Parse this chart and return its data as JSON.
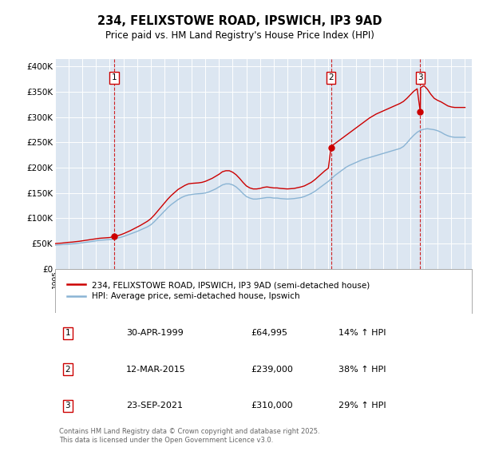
{
  "title_line1": "234, FELIXSTOWE ROAD, IPSWICH, IP3 9AD",
  "title_line2": "Price paid vs. HM Land Registry's House Price Index (HPI)",
  "ylabel_ticks": [
    "£0",
    "£50K",
    "£100K",
    "£150K",
    "£200K",
    "£250K",
    "£300K",
    "£350K",
    "£400K"
  ],
  "ytick_values": [
    0,
    50000,
    100000,
    150000,
    200000,
    250000,
    300000,
    350000,
    400000
  ],
  "ylim": [
    0,
    415000
  ],
  "xlim_start": 1995.0,
  "xlim_end": 2025.5,
  "plot_bg_color": "#dce6f1",
  "grid_color": "#ffffff",
  "red_color": "#cc0000",
  "blue_color": "#8ab4d4",
  "sale_dates_num": [
    1999.33,
    2015.19,
    2021.73
  ],
  "sale_prices": [
    64995,
    239000,
    310000
  ],
  "sale_labels": [
    "1",
    "2",
    "3"
  ],
  "legend_line1": "234, FELIXSTOWE ROAD, IPSWICH, IP3 9AD (semi-detached house)",
  "legend_line2": "HPI: Average price, semi-detached house, Ipswich",
  "table_data": [
    [
      "1",
      "30-APR-1999",
      "£64,995",
      "14% ↑ HPI"
    ],
    [
      "2",
      "12-MAR-2015",
      "£239,000",
      "38% ↑ HPI"
    ],
    [
      "3",
      "23-SEP-2021",
      "£310,000",
      "29% ↑ HPI"
    ]
  ],
  "footer_text": "Contains HM Land Registry data © Crown copyright and database right 2025.\nThis data is licensed under the Open Government Licence v3.0.",
  "hpi_years": [
    1995.0,
    1995.25,
    1995.5,
    1995.75,
    1996.0,
    1996.25,
    1996.5,
    1996.75,
    1997.0,
    1997.25,
    1997.5,
    1997.75,
    1998.0,
    1998.25,
    1998.5,
    1998.75,
    1999.0,
    1999.25,
    1999.5,
    1999.75,
    2000.0,
    2000.25,
    2000.5,
    2000.75,
    2001.0,
    2001.25,
    2001.5,
    2001.75,
    2002.0,
    2002.25,
    2002.5,
    2002.75,
    2003.0,
    2003.25,
    2003.5,
    2003.75,
    2004.0,
    2004.25,
    2004.5,
    2004.75,
    2005.0,
    2005.25,
    2005.5,
    2005.75,
    2006.0,
    2006.25,
    2006.5,
    2006.75,
    2007.0,
    2007.25,
    2007.5,
    2007.75,
    2008.0,
    2008.25,
    2008.5,
    2008.75,
    2009.0,
    2009.25,
    2009.5,
    2009.75,
    2010.0,
    2010.25,
    2010.5,
    2010.75,
    2011.0,
    2011.25,
    2011.5,
    2011.75,
    2012.0,
    2012.25,
    2012.5,
    2012.75,
    2013.0,
    2013.25,
    2013.5,
    2013.75,
    2014.0,
    2014.25,
    2014.5,
    2014.75,
    2015.0,
    2015.25,
    2015.5,
    2015.75,
    2016.0,
    2016.25,
    2016.5,
    2016.75,
    2017.0,
    2017.25,
    2017.5,
    2017.75,
    2018.0,
    2018.25,
    2018.5,
    2018.75,
    2019.0,
    2019.25,
    2019.5,
    2019.75,
    2020.0,
    2020.25,
    2020.5,
    2020.75,
    2021.0,
    2021.25,
    2021.5,
    2021.75,
    2022.0,
    2022.25,
    2022.5,
    2022.75,
    2023.0,
    2023.25,
    2023.5,
    2023.75,
    2024.0,
    2024.25,
    2024.5,
    2024.75,
    2025.0
  ],
  "hpi_values": [
    47000,
    47500,
    48000,
    48500,
    49000,
    49500,
    50000,
    50800,
    51600,
    52500,
    53500,
    54500,
    55500,
    56500,
    57000,
    57500,
    58000,
    59000,
    60500,
    62000,
    64000,
    66500,
    69000,
    71500,
    74000,
    77000,
    80000,
    83000,
    87000,
    93000,
    100000,
    107000,
    114000,
    121000,
    127000,
    132000,
    137000,
    141000,
    144000,
    146000,
    147000,
    148000,
    148500,
    149000,
    150000,
    152000,
    155000,
    158000,
    162000,
    166000,
    168000,
    168000,
    166000,
    162000,
    156000,
    149000,
    143000,
    140000,
    138000,
    138000,
    139000,
    140000,
    141000,
    141000,
    140000,
    140000,
    139000,
    138500,
    138000,
    138500,
    139000,
    140000,
    141000,
    143000,
    146000,
    149000,
    153000,
    158000,
    163000,
    168000,
    173000,
    179000,
    185000,
    190000,
    195000,
    200000,
    204000,
    207000,
    210000,
    213000,
    216000,
    218000,
    220000,
    222000,
    224000,
    226000,
    228000,
    230000,
    232000,
    234000,
    236000,
    238000,
    242000,
    249000,
    257000,
    264000,
    270000,
    274000,
    276000,
    277000,
    276000,
    275000,
    273000,
    270000,
    266000,
    263000,
    261000,
    260000,
    260000,
    260000,
    260000
  ],
  "red_line_years": [
    1995.0,
    1995.25,
    1995.5,
    1995.75,
    1996.0,
    1996.25,
    1996.5,
    1996.75,
    1997.0,
    1997.25,
    1997.5,
    1997.75,
    1998.0,
    1998.25,
    1998.5,
    1998.75,
    1999.0,
    1999.25,
    1999.5,
    1999.75,
    2000.0,
    2000.25,
    2000.5,
    2000.75,
    2001.0,
    2001.25,
    2001.5,
    2001.75,
    2002.0,
    2002.25,
    2002.5,
    2002.75,
    2003.0,
    2003.25,
    2003.5,
    2003.75,
    2004.0,
    2004.25,
    2004.5,
    2004.75,
    2005.0,
    2005.25,
    2005.5,
    2005.75,
    2006.0,
    2006.25,
    2006.5,
    2006.75,
    2007.0,
    2007.25,
    2007.5,
    2007.75,
    2008.0,
    2008.25,
    2008.5,
    2008.75,
    2009.0,
    2009.25,
    2009.5,
    2009.75,
    2010.0,
    2010.25,
    2010.5,
    2010.75,
    2011.0,
    2011.25,
    2011.5,
    2011.75,
    2012.0,
    2012.25,
    2012.5,
    2012.75,
    2013.0,
    2013.25,
    2013.5,
    2013.75,
    2014.0,
    2014.25,
    2014.5,
    2014.75,
    2015.0,
    2015.19,
    2015.25,
    2015.5,
    2015.75,
    2016.0,
    2016.25,
    2016.5,
    2016.75,
    2017.0,
    2017.25,
    2017.5,
    2017.75,
    2018.0,
    2018.25,
    2018.5,
    2018.75,
    2019.0,
    2019.25,
    2019.5,
    2019.75,
    2020.0,
    2020.25,
    2020.5,
    2020.75,
    2021.0,
    2021.25,
    2021.5,
    2021.73,
    2021.75,
    2022.0,
    2022.25,
    2022.5,
    2022.75,
    2023.0,
    2023.25,
    2023.5,
    2023.75,
    2024.0,
    2024.25,
    2024.5,
    2024.75,
    2025.0
  ],
  "red_line_values": [
    50000,
    50500,
    51000,
    51800,
    52500,
    53000,
    53800,
    54500,
    55500,
    56500,
    57500,
    58500,
    59500,
    60500,
    61000,
    61500,
    62000,
    63500,
    65000,
    67000,
    69500,
    72500,
    75500,
    79000,
    82500,
    86000,
    90000,
    94000,
    99000,
    106000,
    114000,
    122000,
    130000,
    138000,
    145000,
    151000,
    157000,
    161000,
    165000,
    168000,
    169000,
    169500,
    170000,
    171000,
    173000,
    176000,
    179000,
    183000,
    187000,
    192000,
    194000,
    194000,
    191000,
    186000,
    179000,
    171000,
    164000,
    160000,
    158000,
    158000,
    159000,
    161000,
    162000,
    161000,
    160000,
    160000,
    159000,
    158500,
    158000,
    158500,
    159000,
    160500,
    162000,
    164000,
    167500,
    171000,
    176000,
    182000,
    188000,
    194000,
    199000,
    239000,
    243000,
    248000,
    253000,
    258000,
    263000,
    268000,
    273000,
    278000,
    283000,
    288000,
    293000,
    298000,
    302000,
    306000,
    309000,
    312000,
    315000,
    318000,
    321000,
    324000,
    327000,
    331000,
    337000,
    344000,
    351000,
    356000,
    310000,
    358000,
    362000,
    355000,
    345000,
    337000,
    333000,
    330000,
    326000,
    322000,
    320000,
    319000,
    319000,
    319000,
    319000
  ]
}
